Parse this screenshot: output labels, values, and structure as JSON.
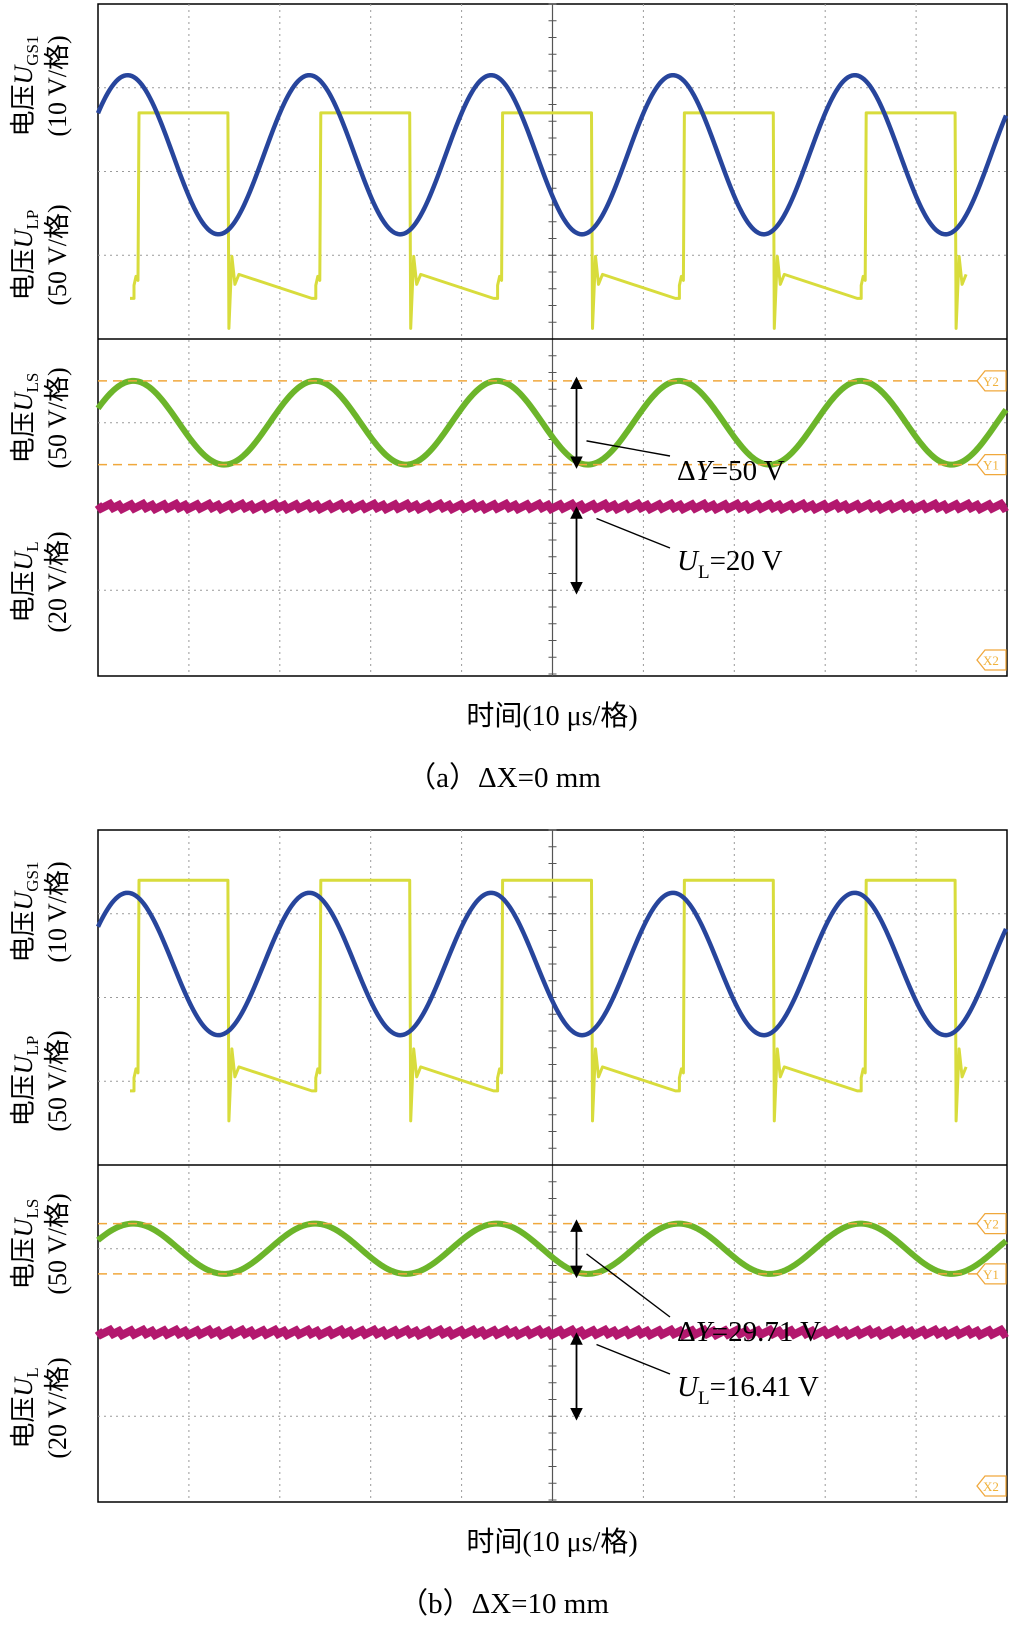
{
  "chart_data": [
    {
      "type": "line",
      "caption": "（a）ΔX=0 mm",
      "xlabel": "时间(10 μs/格)",
      "grid": true,
      "upper_channels": [
        {
          "symbol": "U",
          "sub": "GS1",
          "scale": "(10 V/格)"
        },
        {
          "symbol": "U",
          "sub": "LP",
          "scale": "(50 V/格)"
        }
      ],
      "lower_channels": [
        {
          "symbol": "U",
          "sub": "LS",
          "scale": "(50 V/格)"
        },
        {
          "symbol": "U",
          "sub": "L",
          "scale": "(20 V/格)"
        }
      ],
      "annotations": {
        "delta_y": {
          "prefix": "Δ",
          "var": "Y",
          "value": "=50 V"
        },
        "ul": {
          "var": "U",
          "sub": "L",
          "value": "=20 V"
        }
      },
      "markers": [
        "Y2",
        "Y1",
        "X2"
      ],
      "colors": {
        "gate": "#d8dc3c",
        "primary": "#27459c",
        "secondary": "#6cb52a",
        "output": "#b3186e",
        "cursor": "#f0a83c"
      },
      "series_divisions": {
        "gate_high": 1.3,
        "gate_low": 3.3,
        "primary_center": 1.8,
        "primary_amplitude": 0.95,
        "secondary_center": 1.0,
        "secondary_amplitude": 0.5,
        "output_level": 2.0,
        "cycles": 5
      },
      "delta_y_divisions": 1.0,
      "ul_value_V": 20
    },
    {
      "type": "line",
      "caption": "（b）ΔX=10 mm",
      "xlabel": "时间(10 μs/格)",
      "grid": true,
      "upper_channels": [
        {
          "symbol": "U",
          "sub": "GS1",
          "scale": "(10 V/格)"
        },
        {
          "symbol": "U",
          "sub": "LP",
          "scale": "(50 V/格)"
        }
      ],
      "lower_channels": [
        {
          "symbol": "U",
          "sub": "LS",
          "scale": "(50 V/格)"
        },
        {
          "symbol": "U",
          "sub": "L",
          "scale": "(20 V/格)"
        }
      ],
      "annotations": {
        "delta_y": {
          "prefix": "Δ",
          "var": "Y",
          "value": "=29.71 V"
        },
        "ul": {
          "var": "U",
          "sub": "L",
          "value": "=16.41 V"
        }
      },
      "markers": [
        "Y2",
        "Y1",
        "X2"
      ],
      "colors": {
        "gate": "#d8dc3c",
        "primary": "#27459c",
        "secondary": "#6cb52a",
        "output": "#b3186e",
        "cursor": "#f0a83c"
      },
      "series_divisions": {
        "gate_high": 0.6,
        "gate_low": 2.9,
        "primary_center": 1.6,
        "primary_amplitude": 0.85,
        "secondary_center": 1.0,
        "secondary_amplitude": 0.3,
        "output_level": 2.0,
        "cycles": 5
      },
      "delta_y_divisions": 0.6,
      "ul_value_V": 16.41
    }
  ]
}
